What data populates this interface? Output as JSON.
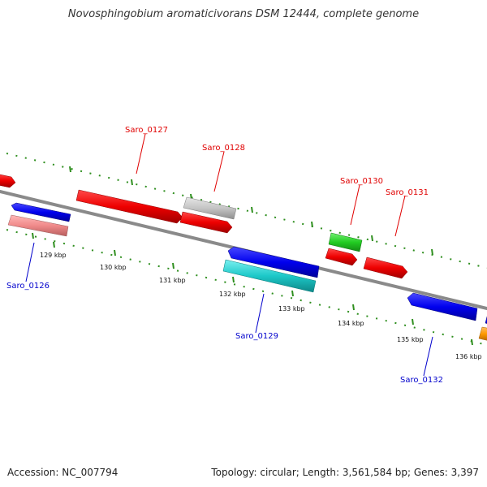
{
  "title": "Novosphingobium aromaticivorans DSM 12444, complete genome",
  "footer": {
    "accession": "Accession: NC_007794",
    "summary": "Topology: circular; Length: 3,561,584 bp; Genes: 3,397"
  },
  "colors": {
    "backbone": "#8a8a8a",
    "dotted_track": "#2f8f1f",
    "forward_label": "#e00000",
    "reverse_label": "#0000cc"
  },
  "scale_labels": [
    "129 kbp",
    "130 kbp",
    "131 kbp",
    "132 kbp",
    "133 kbp",
    "134 kbp",
    "135 kbp",
    "136 kbp"
  ],
  "gene_labels": {
    "forward": [
      "Saro_0127",
      "Saro_0128",
      "Saro_0130",
      "Saro_0131"
    ],
    "reverse": [
      "Saro_0126",
      "Saro_0129",
      "Saro_0132"
    ]
  }
}
